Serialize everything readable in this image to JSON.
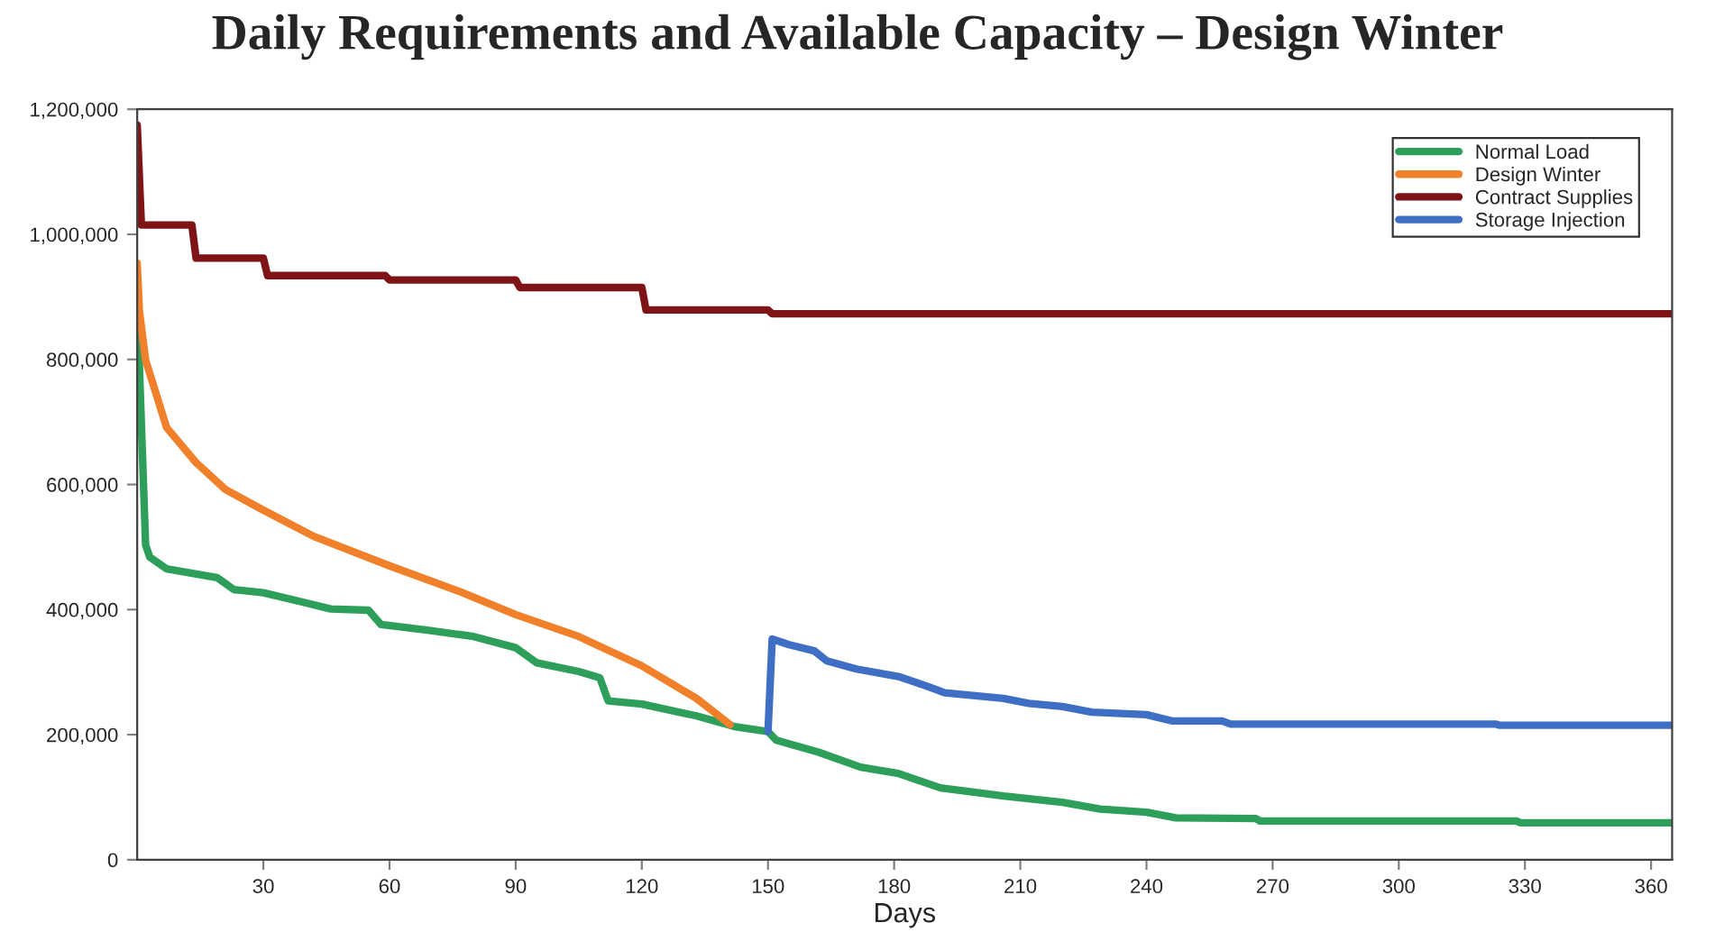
{
  "chart_data": {
    "type": "line",
    "title": "Daily Requirements and Available Capacity – Design Winter",
    "xlabel": "Days",
    "xlim": [
      0,
      365
    ],
    "xticks": [
      30,
      60,
      90,
      120,
      150,
      180,
      210,
      240,
      270,
      300,
      330,
      360
    ],
    "ylim": [
      0,
      1200000
    ],
    "yticks": [
      {
        "value": 0,
        "label": "0"
      },
      {
        "value": 200000,
        "label": "200,000"
      },
      {
        "value": 400000,
        "label": "400,000"
      },
      {
        "value": 600000,
        "label": "600,000"
      },
      {
        "value": 800000,
        "label": "800,000"
      },
      {
        "value": 1000000,
        "label": "1,000,000"
      },
      {
        "value": 1200000,
        "label": "1,200,000"
      }
    ],
    "grid": false,
    "legend": "top right",
    "marker": "none",
    "line_style": "solid",
    "series": [
      {
        "name": "Normal Load",
        "color": "#2e9e5b",
        "x": [
          0,
          2,
          3,
          7,
          19,
          23,
          30,
          40,
          46,
          55,
          58,
          69,
          80,
          90,
          95,
          105,
          110,
          112,
          120,
          133,
          142,
          150,
          152,
          162,
          172,
          181,
          191,
          206,
          220,
          229,
          240,
          247,
          266,
          267,
          328,
          329,
          365
        ],
        "values": [
          889000,
          503000,
          484000,
          465000,
          451000,
          432000,
          427000,
          411000,
          401000,
          399000,
          376000,
          367000,
          357000,
          339000,
          315000,
          301000,
          291000,
          254000,
          249000,
          230000,
          213000,
          205000,
          191000,
          172000,
          148000,
          138000,
          115000,
          102000,
          92000,
          81000,
          76000,
          67000,
          66000,
          62000,
          62000,
          59000,
          59000
        ]
      },
      {
        "name": "Design Winter",
        "color": "#f0802a",
        "x": [
          0,
          0.5,
          2,
          7,
          14,
          21,
          30,
          42,
          60,
          77,
          90,
          105,
          120,
          133,
          141
        ],
        "values": [
          954000,
          879000,
          799000,
          691000,
          635000,
          592000,
          559000,
          517000,
          470000,
          428000,
          392000,
          357000,
          310000,
          258000,
          216000
        ]
      },
      {
        "name": "Contract Supplies",
        "color": "#7f1416",
        "x": [
          0,
          1,
          13,
          14,
          30,
          31,
          59,
          60,
          90,
          91,
          120,
          121,
          150,
          151,
          365
        ],
        "values": [
          1175000,
          1015000,
          1015000,
          962000,
          962000,
          934000,
          934000,
          927000,
          927000,
          915000,
          915000,
          879000,
          879000,
          873000,
          873000
        ]
      },
      {
        "name": "Storage Injection",
        "color": "#3f6fc4",
        "x": [
          150,
          151,
          155,
          161,
          164,
          171,
          181,
          188,
          192,
          206,
          212,
          220,
          227,
          240,
          246,
          258,
          260,
          323,
          324,
          365
        ],
        "values": [
          205000,
          353000,
          344000,
          334000,
          318000,
          305000,
          293000,
          277000,
          267000,
          258000,
          250000,
          245000,
          236000,
          232000,
          222000,
          222000,
          217000,
          217000,
          215000,
          215000
        ]
      }
    ]
  }
}
